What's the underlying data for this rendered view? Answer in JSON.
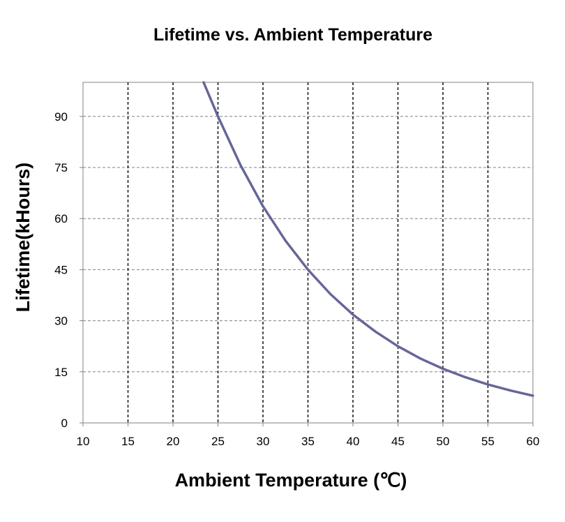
{
  "chart_data": {
    "type": "line",
    "title": "Lifetime vs. Ambient   Temperature",
    "xlabel": "Ambient   Temperature (℃)",
    "ylabel": "Lifetime(kHours)",
    "xlim": [
      10,
      60
    ],
    "ylim": [
      0,
      100
    ],
    "xticks": [
      10,
      15,
      20,
      25,
      30,
      35,
      40,
      45,
      50,
      55,
      60
    ],
    "yticks": [
      0,
      15,
      30,
      45,
      60,
      75,
      90
    ],
    "grid": true,
    "series": [
      {
        "color": "#666699",
        "x": [
          23.4,
          25,
          27.5,
          30,
          32.5,
          35,
          37.5,
          40,
          42.5,
          45,
          47.5,
          50,
          52.5,
          55,
          57.5,
          60
        ],
        "y": [
          100,
          90,
          75.7,
          63.6,
          53.5,
          45,
          37.8,
          31.8,
          26.8,
          22.5,
          18.9,
          15.9,
          13.4,
          11.3,
          9.5,
          8
        ]
      }
    ]
  }
}
